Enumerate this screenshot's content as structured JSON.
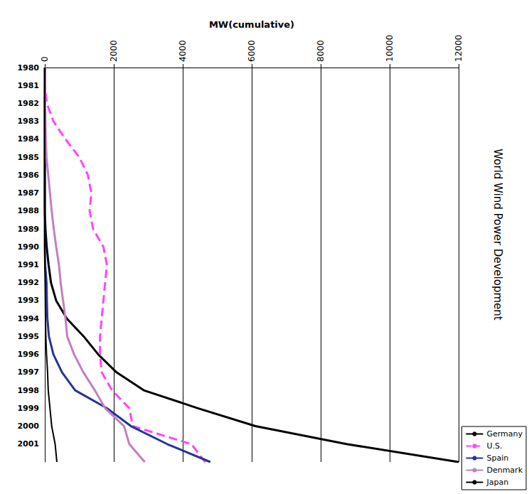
{
  "chart_data": {
    "type": "line",
    "title": "World Wind Power Development",
    "orientation": "horizontal",
    "y_label": "MW(cumulative)",
    "categories": [
      "1980",
      "1981",
      "1982",
      "1983",
      "1984",
      "1985",
      "1986",
      "1987",
      "1988",
      "1989",
      "1990",
      "1991",
      "1992",
      "1993",
      "1994",
      "1995",
      "1996",
      "1997",
      "1998",
      "1999",
      "2000",
      "2001",
      null
    ],
    "ylim": [
      0,
      12000
    ],
    "yticks": [
      0,
      2000,
      4000,
      6000,
      8000,
      10000,
      12000
    ],
    "grid": true,
    "legend": "right",
    "series": [
      {
        "name": "Germany",
        "color": "#000000",
        "line_style": "solid",
        "values": [
          0,
          0,
          0,
          0,
          0,
          0,
          0,
          0,
          0,
          20,
          55,
          110,
          180,
          330,
          640,
          1130,
          1550,
          2080,
          2870,
          4440,
          6110,
          8750,
          12000
        ]
      },
      {
        "name": "U.S.",
        "color": "#ff44ff",
        "line_style": "dashed",
        "values": [
          0,
          10,
          60,
          250,
          600,
          1000,
          1250,
          1350,
          1300,
          1400,
          1700,
          1800,
          1750,
          1700,
          1650,
          1600,
          1600,
          1650,
          1950,
          2450,
          2550,
          4250,
          4650
        ]
      },
      {
        "name": "Spain",
        "color": "#26349a",
        "line_style": "solid",
        "values": [
          0,
          0,
          0,
          0,
          0,
          0,
          0,
          0,
          0,
          0,
          0,
          10,
          50,
          60,
          75,
          120,
          250,
          500,
          880,
          1800,
          2500,
          3550,
          4800
        ]
      },
      {
        "name": "Denmark",
        "color": "#c080c0",
        "line_style": "solid",
        "values": [
          0,
          5,
          10,
          20,
          30,
          50,
          100,
          150,
          200,
          260,
          330,
          410,
          460,
          530,
          600,
          650,
          850,
          1120,
          1450,
          1750,
          2300,
          2450,
          2900
        ]
      },
      {
        "name": "Japan",
        "color": "#000000",
        "line_style": "solid",
        "values": [
          0,
          0,
          0,
          0,
          0,
          0,
          0,
          0,
          0,
          0,
          0,
          0,
          10,
          15,
          20,
          30,
          50,
          80,
          100,
          150,
          200,
          300,
          350
        ]
      }
    ]
  }
}
